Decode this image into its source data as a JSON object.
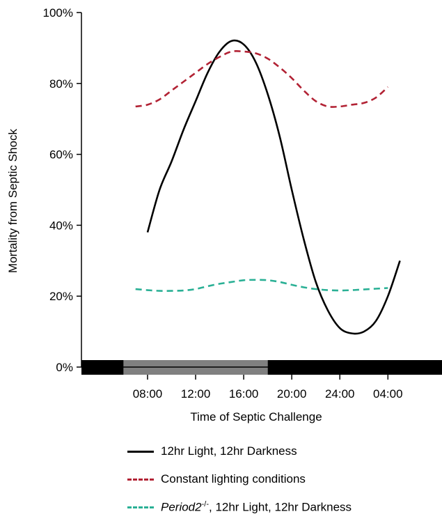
{
  "chart_data": {
    "type": "line",
    "xlabel": "Time of Septic Challenge",
    "ylabel": "Mortality from Septic Shock",
    "ylim": [
      0,
      100
    ],
    "y_ticks": [
      0,
      20,
      40,
      60,
      80,
      100
    ],
    "y_tick_labels": [
      "0%",
      "20%",
      "40%",
      "60%",
      "80%",
      "100%"
    ],
    "x_axis_unit": "hours since midnight (28 = 04:00 next day)",
    "xlim": [
      2.5,
      32.5
    ],
    "x_ticks": [
      8,
      12,
      16,
      20,
      24,
      28
    ],
    "x_tick_labels": [
      "08:00",
      "12:00",
      "16:00",
      "20:00",
      "24:00",
      "04:00"
    ],
    "light_dark_bar": [
      {
        "state": "dark",
        "start": 2.5,
        "end": 6.0
      },
      {
        "state": "light",
        "start": 6.0,
        "end": 18.0
      },
      {
        "state": "dark",
        "start": 18.0,
        "end": 32.5
      }
    ],
    "legend_position": "below",
    "series": [
      {
        "name": "12hr Light, 12hr Darkness",
        "color": "#000000",
        "style": "solid",
        "x": [
          8,
          9,
          10,
          11,
          12,
          13,
          14,
          15,
          16,
          17,
          18,
          19,
          20,
          21,
          22,
          23,
          24,
          25,
          26,
          27,
          28,
          29
        ],
        "y": [
          38,
          50,
          58,
          67,
          75,
          83,
          89,
          92,
          91,
          86,
          77,
          65,
          50,
          36,
          24,
          16,
          11,
          9.5,
          10,
          13,
          20,
          30
        ]
      },
      {
        "name": "Constant lighting conditions",
        "color": "#b22234",
        "style": "dashed",
        "x": [
          7,
          8,
          9,
          10,
          11,
          12,
          13,
          14,
          15,
          16,
          17,
          18,
          19,
          20,
          21,
          22,
          23,
          24,
          25,
          26,
          27,
          28
        ],
        "y": [
          73.5,
          74,
          75.5,
          78,
          80.5,
          83,
          85.5,
          87.5,
          89,
          89,
          88.5,
          87,
          84.5,
          81.5,
          78,
          75,
          73.5,
          73.5,
          74,
          74.5,
          76,
          79
        ]
      },
      {
        "name_parts": {
          "gene": "Period2",
          "superscript": "-/-",
          "rest": ", 12hr Light, 12hr Darkness"
        },
        "color": "#2ab095",
        "style": "dashed",
        "x": [
          7,
          8,
          9,
          10,
          11,
          12,
          13,
          14,
          15,
          16,
          17,
          18,
          19,
          20,
          21,
          22,
          23,
          24,
          25,
          26,
          27,
          28
        ],
        "y": [
          22,
          21.7,
          21.5,
          21.5,
          21.6,
          22,
          22.8,
          23.5,
          24,
          24.5,
          24.6,
          24.5,
          24,
          23.2,
          22.5,
          22,
          21.7,
          21.6,
          21.7,
          21.9,
          22.1,
          22.3
        ]
      }
    ]
  }
}
